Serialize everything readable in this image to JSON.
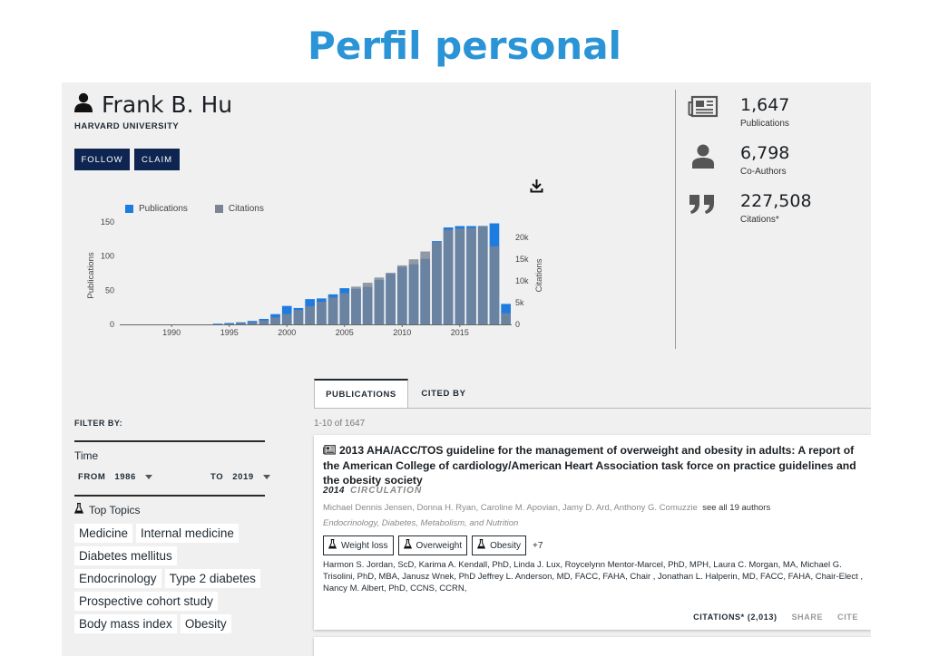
{
  "slide_title": "Perfil personal",
  "profile": {
    "name": "Frank B. Hu",
    "affiliation": "HARVARD UNIVERSITY",
    "follow_label": "FOLLOW",
    "claim_label": "CLAIM"
  },
  "stats": [
    {
      "value": "1,647",
      "label": "Publications",
      "icon": "newspaper-icon"
    },
    {
      "value": "6,798",
      "label": "Co-Authors",
      "icon": "person-icon"
    },
    {
      "value": "227,508",
      "label": "Citations*",
      "icon": "quote-icon"
    }
  ],
  "chart_data": {
    "type": "bar",
    "legend": [
      {
        "name": "Publications",
        "color": "#1e7be0"
      },
      {
        "name": "Citations",
        "color": "#7b8593"
      }
    ],
    "x_ticks": [
      "1990",
      "1995",
      "2000",
      "2005",
      "2010",
      "2015"
    ],
    "y_left_label": "Publications",
    "y_left_ticks": [
      "0",
      "50",
      "100",
      "150"
    ],
    "y_left_range": [
      0,
      150
    ],
    "y_right_label": "Citations",
    "y_right_ticks": [
      "0",
      "5k",
      "10k",
      "15k",
      "20k"
    ],
    "y_right_range": [
      0,
      23600
    ],
    "years": [
      1986,
      1987,
      1988,
      1989,
      1990,
      1991,
      1992,
      1993,
      1994,
      1995,
      1996,
      1997,
      1998,
      1999,
      2000,
      2001,
      2002,
      2003,
      2004,
      2005,
      2006,
      2007,
      2008,
      2009,
      2010,
      2011,
      2012,
      2013,
      2014,
      2015,
      2016,
      2017,
      2018,
      2019
    ],
    "series": [
      {
        "name": "Publications",
        "values": [
          0,
          0,
          0,
          0,
          0,
          0,
          0,
          0,
          1,
          2,
          3,
          5,
          8,
          15,
          27,
          24,
          37,
          38,
          44,
          53,
          52,
          55,
          65,
          74,
          84,
          88,
          96,
          122,
          142,
          144,
          144,
          144,
          148,
          30
        ]
      },
      {
        "name": "Citations",
        "values": [
          0,
          0,
          0,
          0,
          0,
          0,
          0,
          0,
          50,
          150,
          300,
          500,
          900,
          1600,
          2400,
          3300,
          4200,
          5200,
          6200,
          7200,
          8700,
          9600,
          10800,
          11900,
          13600,
          15000,
          16800,
          19000,
          21800,
          22100,
          22200,
          22700,
          18000,
          2600
        ]
      }
    ]
  },
  "tabs": [
    {
      "label": "PUBLICATIONS",
      "active": true
    },
    {
      "label": "CITED BY",
      "active": false
    }
  ],
  "filter": {
    "title": "FILTER BY:",
    "time_label": "Time",
    "from_label": "FROM",
    "from_value": "1986",
    "to_label": "TO",
    "to_value": "2019",
    "topics_label": "Top Topics",
    "topic_rows": [
      [
        "Medicine",
        "Internal medicine"
      ],
      [
        "Diabetes mellitus"
      ],
      [
        "Endocrinology",
        "Type 2 diabetes"
      ],
      [
        "Prospective cohort study"
      ],
      [
        "Body mass index",
        "Obesity"
      ]
    ]
  },
  "results": {
    "count_text": "1-10 of 1647",
    "item": {
      "title": "2013 AHA/ACC/TOS guideline for the management of overweight and obesity in adults: A report of the American College of cardiology/American Heart Association task force on practice guidelines and the obesity society",
      "year": "2014",
      "journal": "CIRCULATION",
      "authors": "Michael Dennis Jensen,  Donna H. Ryan,  Caroline M. Apovian,  Jamy D. Ard,  Anthony G. Comuzzie",
      "see_all": "see all 19 authors",
      "subjects": "Endocrinology, Diabetes, Metabolism, and Nutrition",
      "tags": [
        "Weight loss",
        "Overweight",
        "Obesity"
      ],
      "more_tags": "+7",
      "affiliations": "Harmon S. Jordan, ScD, Karima A. Kendall, PhD, Linda J. Lux, Roycelynn Mentor-Marcel, PhD, MPH, Laura C. Morgan, MA, Michael G. Trisolini, PhD, MBA, Janusz Wnek, PhD Jeffrey L. Anderson, MD, FACC, FAHA, Chair , Jonathan L. Halperin, MD, FACC, FAHA, Chair-Elect , Nancy M. Albert, PhD, CCNS, CCRN,",
      "citations_label": "CITATIONS* (2,013)",
      "share_label": "SHARE",
      "cite_label": "CITE"
    }
  }
}
